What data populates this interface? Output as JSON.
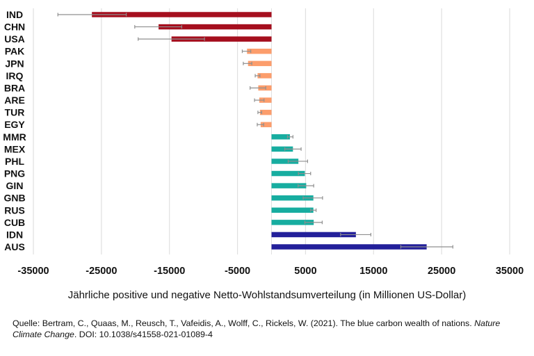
{
  "chart_data": {
    "type": "bar",
    "orientation": "horizontal",
    "xlabel": "Jährliche positive und negative Netto-Wohlstandsumverteilung (in Millionen US-Dollar)",
    "ylabel": "",
    "xlim": [
      -35000,
      35000
    ],
    "xticks": [
      -35000,
      -25000,
      -15000,
      -5000,
      5000,
      15000,
      25000,
      35000
    ],
    "tick_labels": [
      "-35000",
      "-25000",
      "-15000",
      "-5000",
      "5000",
      "15000",
      "25000",
      "35000"
    ],
    "grid": "vertical",
    "error_bars": true,
    "categories": [
      "IND",
      "CHN",
      "USA",
      "PAK",
      "JPN",
      "IRQ",
      "BRA",
      "ARE",
      "TUR",
      "EGY",
      "MMR",
      "MEX",
      "PHL",
      "PNG",
      "GIN",
      "GNB",
      "RUS",
      "CUB",
      "IDN",
      "AUS"
    ],
    "values": [
      -26400,
      -16600,
      -14700,
      -3600,
      -3450,
      -2050,
      -1950,
      -1800,
      -1700,
      -1600,
      2700,
      3150,
      3950,
      4900,
      5100,
      6150,
      6150,
      6200,
      12400,
      22800
    ],
    "error_low": [
      -31400,
      -20100,
      -19600,
      -4300,
      -4150,
      -2400,
      -3150,
      -2500,
      -2000,
      -2100,
      2350,
      1950,
      2450,
      3950,
      3900,
      4650,
      5750,
      4900,
      10150,
      19000
    ],
    "error_high": [
      -21350,
      -13200,
      -9850,
      -3050,
      -2900,
      -1700,
      -850,
      -1100,
      -1450,
      -1150,
      3150,
      4350,
      5300,
      5750,
      6200,
      7500,
      6550,
      7450,
      14600,
      26650
    ],
    "color_groups": [
      "large-loss",
      "large-loss",
      "large-loss",
      "loss",
      "loss",
      "loss",
      "loss",
      "loss",
      "loss",
      "loss",
      "gain",
      "gain",
      "gain",
      "gain",
      "gain",
      "gain",
      "gain",
      "gain",
      "large-gain",
      "large-gain"
    ],
    "colors": {
      "large-loss": "#a50f1e",
      "loss": "#fc9d6c",
      "gain": "#17ada0",
      "large-gain": "#23209a",
      "error": "#8f8f8f",
      "grid": "#e0e0e0"
    }
  },
  "source": {
    "prefix": "Quelle: Bertram, C., Quaas, M., Reusch, T., Vafeidis, A., Wolff, C., Rickels, W. (2021). The blue carbon wealth of nations. ",
    "journal": "Nature Climate Change",
    "suffix": ". DOI: 10.1038/s41558-021-01089-4"
  }
}
